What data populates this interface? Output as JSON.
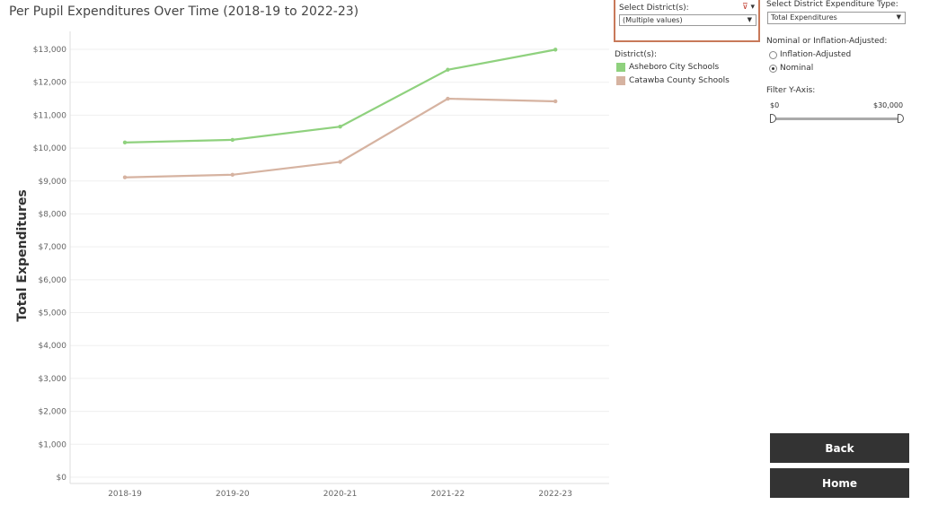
{
  "title": "Per Pupil Expenditures Over Time (2018-19 to 2022-23)",
  "district_filter": {
    "label": "Select District(s):",
    "value": "(Multiple values)"
  },
  "legend": {
    "title": "District(s):",
    "items": [
      {
        "name": "Asheboro City Schools",
        "color": "#8fd17e"
      },
      {
        "name": "Catawba County Schools",
        "color": "#d6b3a1"
      }
    ]
  },
  "expenditure_type": {
    "label": "Select District Expenditure Type:",
    "value": "Total Expenditures"
  },
  "adjustment": {
    "label": "Nominal or Inflation-Adjusted:",
    "options": [
      "Inflation-Adjusted",
      "Nominal"
    ],
    "selected": "Nominal"
  },
  "y_filter": {
    "label": "Filter Y-Axis:",
    "min_label": "$0",
    "max_label": "$30,000"
  },
  "buttons": {
    "back": "Back",
    "home": "Home"
  },
  "chart_data": {
    "type": "line",
    "ylabel": "Total Expenditures",
    "xlabel": "",
    "categories": [
      "2018-19",
      "2019-20",
      "2020-21",
      "2021-22",
      "2022-23"
    ],
    "ylim": [
      0,
      13000
    ],
    "yticks": [
      0,
      1000,
      2000,
      3000,
      4000,
      5000,
      6000,
      7000,
      8000,
      9000,
      10000,
      11000,
      12000,
      13000
    ],
    "ytick_labels": [
      "$0",
      "$1,000",
      "$2,000",
      "$3,000",
      "$4,000",
      "$5,000",
      "$6,000",
      "$7,000",
      "$8,000",
      "$9,000",
      "$10,000",
      "$11,000",
      "$12,000",
      "$13,000"
    ],
    "series": [
      {
        "name": "Asheboro City Schools",
        "color": "#8fd17e",
        "values": [
          10170,
          10250,
          10650,
          12380,
          12990
        ]
      },
      {
        "name": "Catawba County Schools",
        "color": "#d6b3a1",
        "values": [
          9110,
          9190,
          9580,
          11500,
          11420
        ]
      }
    ]
  }
}
